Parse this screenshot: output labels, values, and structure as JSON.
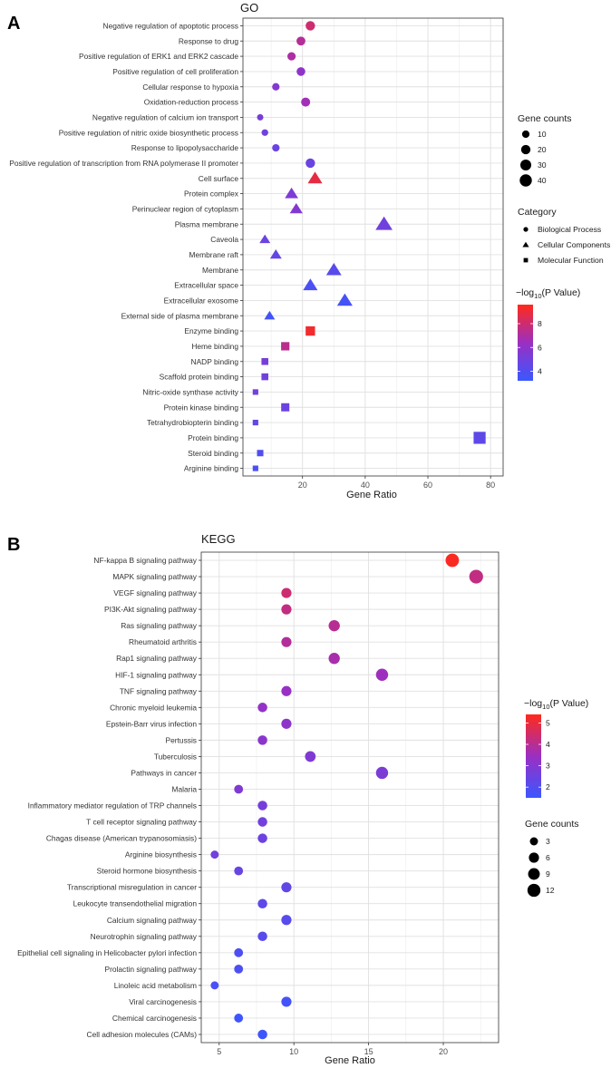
{
  "panel_a": {
    "letter": "A"
  },
  "panel_b": {
    "letter": "B"
  },
  "chart_data": [
    {
      "type": "scatter",
      "title": "GO",
      "xlabel": "Gene Ratio",
      "ylabel": "",
      "xlim": [
        1,
        84
      ],
      "xticks": [
        20,
        40,
        60,
        80
      ],
      "categories": [
        "Negative regulation of apoptotic process",
        "Response to drug",
        "Positive regulation of ERK1 and ERK2 cascade",
        "Positive regulation of cell proliferation",
        "Cellular response to hypoxia",
        "Oxidation-reduction process",
        "Negative regulation of calcium ion transport",
        "Positive regulation of nitric oxide biosynthetic process",
        "Response to lipopolysaccharide",
        "Positive regulation of transcription from RNA polymerase II promoter",
        "Cell surface",
        "Protein complex",
        "Perinuclear region of cytoplasm",
        "Plasma membrane",
        "Caveola",
        "Membrane raft",
        "Membrane",
        "Extracellular space",
        "Extracellular exosome",
        "External side of plasma membrane",
        "Enzyme binding",
        "Heme binding",
        "NADP binding",
        "Scaffold protein binding",
        "Nitric-oxide synthase activity",
        "Protein kinase binding",
        "Tetrahydrobiopterin binding",
        "Protein binding",
        "Steroid binding",
        "Arginine binding"
      ],
      "points": [
        {
          "gene_ratio": 22.5,
          "count": 20,
          "neg_log10_p": 8.0,
          "category": "Biological Process"
        },
        {
          "gene_ratio": 19.5,
          "count": 17,
          "neg_log10_p": 7.2,
          "category": "Biological Process"
        },
        {
          "gene_ratio": 16.5,
          "count": 14,
          "neg_log10_p": 7.0,
          "category": "Biological Process"
        },
        {
          "gene_ratio": 19.5,
          "count": 16,
          "neg_log10_p": 6.0,
          "category": "Biological Process"
        },
        {
          "gene_ratio": 11.5,
          "count": 10,
          "neg_log10_p": 5.6,
          "category": "Biological Process"
        },
        {
          "gene_ratio": 21.0,
          "count": 18,
          "neg_log10_p": 6.6,
          "category": "Biological Process"
        },
        {
          "gene_ratio": 6.5,
          "count": 6,
          "neg_log10_p": 5.2,
          "category": "Biological Process"
        },
        {
          "gene_ratio": 8.0,
          "count": 7,
          "neg_log10_p": 5.0,
          "category": "Biological Process"
        },
        {
          "gene_ratio": 11.5,
          "count": 10,
          "neg_log10_p": 4.8,
          "category": "Biological Process"
        },
        {
          "gene_ratio": 22.5,
          "count": 20,
          "neg_log10_p": 4.8,
          "category": "Biological Process"
        },
        {
          "gene_ratio": 24.0,
          "count": 28,
          "neg_log10_p": 8.8,
          "category": "Cellular Components"
        },
        {
          "gene_ratio": 16.5,
          "count": 22,
          "neg_log10_p": 5.4,
          "category": "Cellular Components"
        },
        {
          "gene_ratio": 18.0,
          "count": 20,
          "neg_log10_p": 5.6,
          "category": "Cellular Components"
        },
        {
          "gene_ratio": 46.0,
          "count": 42,
          "neg_log10_p": 5.0,
          "category": "Cellular Components"
        },
        {
          "gene_ratio": 8.0,
          "count": 12,
          "neg_log10_p": 4.8,
          "category": "Cellular Components"
        },
        {
          "gene_ratio": 11.5,
          "count": 15,
          "neg_log10_p": 4.6,
          "category": "Cellular Components"
        },
        {
          "gene_ratio": 30.0,
          "count": 32,
          "neg_log10_p": 4.2,
          "category": "Cellular Components"
        },
        {
          "gene_ratio": 22.5,
          "count": 28,
          "neg_log10_p": 3.8,
          "category": "Cellular Components"
        },
        {
          "gene_ratio": 33.5,
          "count": 33,
          "neg_log10_p": 3.6,
          "category": "Cellular Components"
        },
        {
          "gene_ratio": 9.5,
          "count": 12,
          "neg_log10_p": 3.5,
          "category": "Cellular Components"
        },
        {
          "gene_ratio": 22.5,
          "count": 25,
          "neg_log10_p": 9.2,
          "category": "Molecular Function"
        },
        {
          "gene_ratio": 14.5,
          "count": 18,
          "neg_log10_p": 7.4,
          "category": "Molecular Function"
        },
        {
          "gene_ratio": 8.0,
          "count": 10,
          "neg_log10_p": 5.2,
          "category": "Molecular Function"
        },
        {
          "gene_ratio": 8.0,
          "count": 10,
          "neg_log10_p": 5.0,
          "category": "Molecular Function"
        },
        {
          "gene_ratio": 5.0,
          "count": 5,
          "neg_log10_p": 5.0,
          "category": "Molecular Function"
        },
        {
          "gene_ratio": 14.5,
          "count": 17,
          "neg_log10_p": 4.8,
          "category": "Molecular Function"
        },
        {
          "gene_ratio": 5.0,
          "count": 5,
          "neg_log10_p": 4.6,
          "category": "Molecular Function"
        },
        {
          "gene_ratio": 76.5,
          "count": 48,
          "neg_log10_p": 4.4,
          "category": "Molecular Function"
        },
        {
          "gene_ratio": 6.5,
          "count": 8,
          "neg_log10_p": 4.0,
          "category": "Molecular Function"
        },
        {
          "gene_ratio": 5.0,
          "count": 5,
          "neg_log10_p": 3.8,
          "category": "Molecular Function"
        }
      ],
      "legend_size": {
        "title": "Gene counts",
        "values": [
          10,
          20,
          30,
          40
        ]
      },
      "legend_shape": {
        "title": "Category",
        "items": [
          "Biological Process",
          "Cellular Components",
          "Molecular Function"
        ]
      },
      "legend_color": {
        "title_prefix": "−log",
        "title_sub": "10",
        "title_suffix": "(P Value)",
        "min": 3.2,
        "max": 9.6,
        "ticks": [
          4,
          6,
          8
        ],
        "low_color": "#3a57ff",
        "mid_color": "#9b2fc2",
        "high_color": "#ff2a1a"
      }
    },
    {
      "type": "scatter",
      "title": "KEGG",
      "xlabel": "Gene Ratio",
      "ylabel": "",
      "xlim": [
        3.8,
        23.7
      ],
      "xticks": [
        5,
        10,
        15,
        20
      ],
      "categories": [
        "NF-kappa B signaling pathway",
        "MAPK signaling pathway",
        "VEGF signaling pathway",
        "PI3K-Akt signaling pathway",
        "Ras signaling pathway",
        "Rheumatoid arthritis",
        "Rap1 signaling pathway",
        "HIF-1 signaling pathway",
        "TNF signaling pathway",
        "Chronic myeloid leukemia",
        "Epstein-Barr virus infection",
        "Pertussis",
        "Tuberculosis",
        "Pathways in cancer",
        "Malaria",
        "Inflammatory mediator regulation of TRP channels",
        "T cell receptor signaling pathway",
        "Chagas disease (American trypanosomiasis)",
        "Arginine biosynthesis",
        "Steroid hormone biosynthesis",
        "Transcriptional misregulation in cancer",
        "Leukocyte transendothelial migration",
        "Calcium signaling pathway",
        "Neurotrophin signaling pathway",
        "Epithelial cell signaling in Helicobacter pylori infection",
        "Prolactin signaling pathway",
        "Linoleic acid metabolism",
        "Viral carcinogenesis",
        "Chemical carcinogenesis",
        "Cell adhesion molecules (CAMs)"
      ],
      "points": [
        {
          "gene_ratio": 20.6,
          "count": 13,
          "neg_log10_p": 5.3
        },
        {
          "gene_ratio": 22.2,
          "count": 14,
          "neg_log10_p": 4.2
        },
        {
          "gene_ratio": 9.5,
          "count": 6,
          "neg_log10_p": 4.4
        },
        {
          "gene_ratio": 9.5,
          "count": 6,
          "neg_log10_p": 4.2
        },
        {
          "gene_ratio": 12.7,
          "count": 8,
          "neg_log10_p": 4.0
        },
        {
          "gene_ratio": 9.5,
          "count": 6,
          "neg_log10_p": 3.9
        },
        {
          "gene_ratio": 12.7,
          "count": 8,
          "neg_log10_p": 3.7
        },
        {
          "gene_ratio": 15.9,
          "count": 10,
          "neg_log10_p": 3.5
        },
        {
          "gene_ratio": 9.5,
          "count": 6,
          "neg_log10_p": 3.4
        },
        {
          "gene_ratio": 7.9,
          "count": 5,
          "neg_log10_p": 3.3
        },
        {
          "gene_ratio": 9.5,
          "count": 6,
          "neg_log10_p": 3.2
        },
        {
          "gene_ratio": 7.9,
          "count": 5,
          "neg_log10_p": 3.1
        },
        {
          "gene_ratio": 11.1,
          "count": 7,
          "neg_log10_p": 2.9
        },
        {
          "gene_ratio": 15.9,
          "count": 10,
          "neg_log10_p": 2.8
        },
        {
          "gene_ratio": 6.3,
          "count": 4,
          "neg_log10_p": 2.9
        },
        {
          "gene_ratio": 7.9,
          "count": 5,
          "neg_log10_p": 2.7
        },
        {
          "gene_ratio": 7.9,
          "count": 5,
          "neg_log10_p": 2.6
        },
        {
          "gene_ratio": 7.9,
          "count": 5,
          "neg_log10_p": 2.5
        },
        {
          "gene_ratio": 4.7,
          "count": 3,
          "neg_log10_p": 2.6
        },
        {
          "gene_ratio": 6.3,
          "count": 4,
          "neg_log10_p": 2.4
        },
        {
          "gene_ratio": 9.5,
          "count": 6,
          "neg_log10_p": 2.3
        },
        {
          "gene_ratio": 7.9,
          "count": 5,
          "neg_log10_p": 2.2
        },
        {
          "gene_ratio": 9.5,
          "count": 6,
          "neg_log10_p": 2.1
        },
        {
          "gene_ratio": 7.9,
          "count": 5,
          "neg_log10_p": 2.1
        },
        {
          "gene_ratio": 6.3,
          "count": 4,
          "neg_log10_p": 1.9
        },
        {
          "gene_ratio": 6.3,
          "count": 4,
          "neg_log10_p": 1.9
        },
        {
          "gene_ratio": 4.7,
          "count": 3,
          "neg_log10_p": 1.8
        },
        {
          "gene_ratio": 9.5,
          "count": 6,
          "neg_log10_p": 1.7
        },
        {
          "gene_ratio": 6.3,
          "count": 4,
          "neg_log10_p": 1.6
        },
        {
          "gene_ratio": 7.9,
          "count": 5,
          "neg_log10_p": 1.6
        }
      ],
      "legend_size": {
        "title": "Gene counts",
        "values": [
          3,
          6,
          9,
          12
        ]
      },
      "legend_color": {
        "title_prefix": "−log",
        "title_sub": "10",
        "title_suffix": "(P Value)",
        "min": 1.5,
        "max": 5.4,
        "ticks": [
          2,
          3,
          4,
          5
        ],
        "low_color": "#3a57ff",
        "mid_color": "#9b2fc2",
        "high_color": "#ff2a1a"
      }
    }
  ]
}
